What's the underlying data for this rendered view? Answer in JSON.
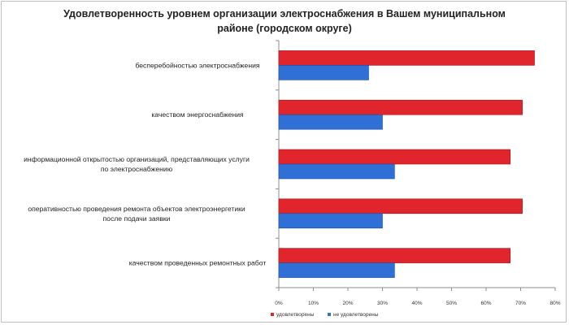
{
  "chart_data": {
    "type": "bar",
    "orientation": "horizontal",
    "title": "Удовлетворенность уровнем организации электроснабжения в Вашем муниципальном\nрайоне (городском округе)",
    "categories": [
      [
        "бесперебойностью  электроснабжения"
      ],
      [
        "качеством энергоснабжения"
      ],
      [
        "информационной открытостью организаций, представляющих услуги",
        "по электроснабжению"
      ],
      [
        "оперативностью проведения ремонта объектов электроэнергетики",
        "после подачи заявки"
      ],
      [
        "качеством проведенных ремонтных работ"
      ]
    ],
    "series": [
      {
        "name": "удовлетворены",
        "color": "#e0252c",
        "values": [
          0.74,
          0.705,
          0.67,
          0.705,
          0.67
        ]
      },
      {
        "name": "не удовлетворены",
        "color": "#2f6fd6",
        "values": [
          0.26,
          0.3,
          0.335,
          0.3,
          0.335
        ]
      }
    ],
    "xlim": [
      0,
      0.8
    ],
    "xticks": [
      "0%",
      "10%",
      "20%",
      "30%",
      "40%",
      "50%",
      "60%",
      "70%",
      "80%"
    ],
    "grid": false,
    "legend_position": "bottom"
  }
}
